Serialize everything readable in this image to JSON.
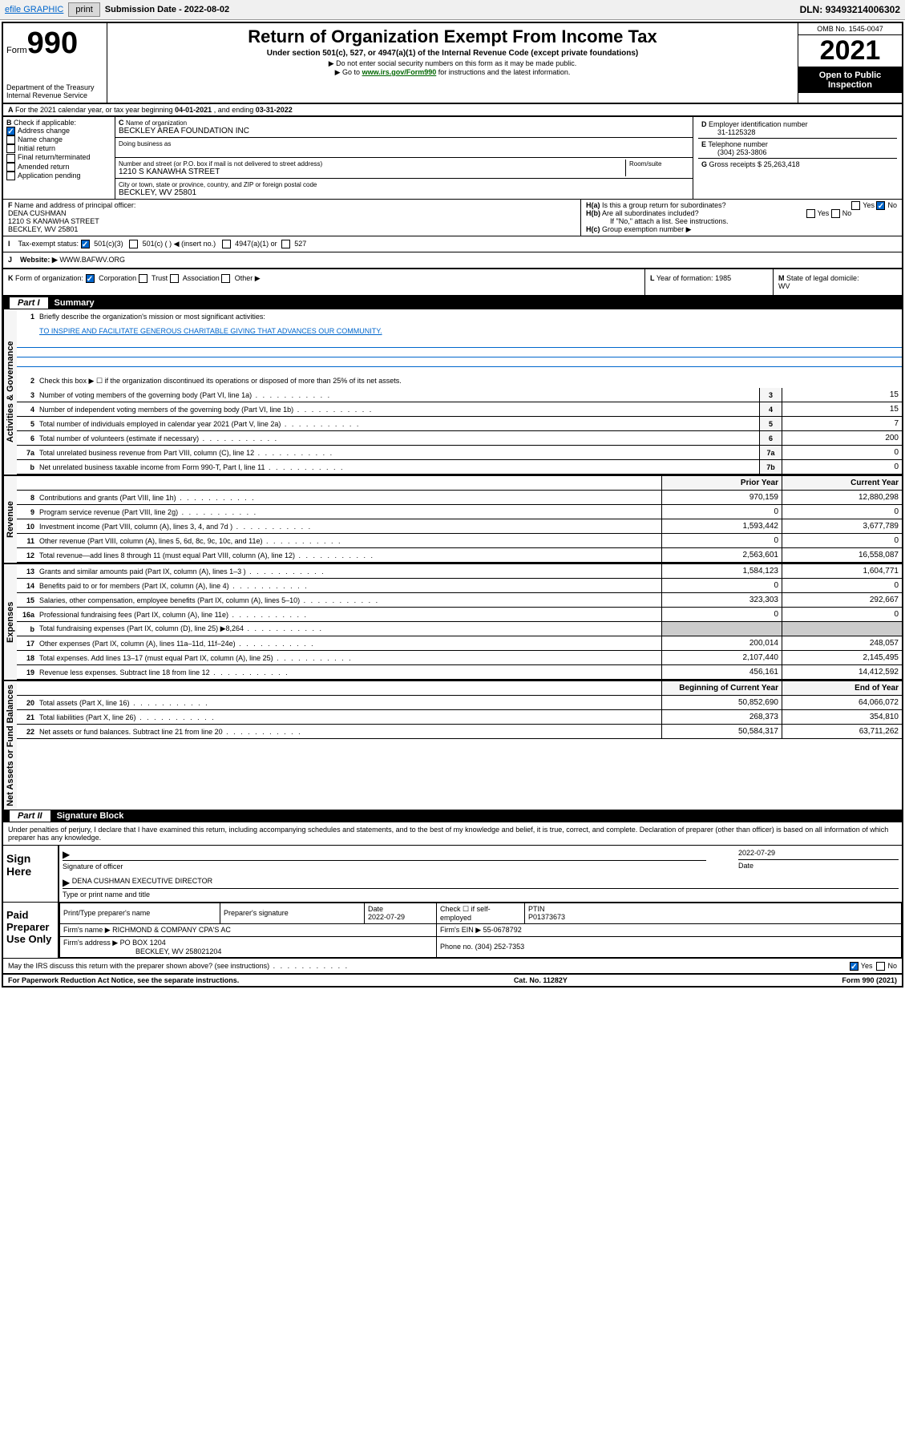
{
  "toolbar": {
    "efile": "efile GRAPHIC",
    "print": "print",
    "subdate_label": "Submission Date - ",
    "subdate": "2022-08-02",
    "dln_label": "DLN: ",
    "dln": "93493214006302"
  },
  "header": {
    "form_prefix": "Form",
    "form_num": "990",
    "dept": "Department of the Treasury",
    "irs": "Internal Revenue Service",
    "title": "Return of Organization Exempt From Income Tax",
    "subtitle": "Under section 501(c), 527, or 4947(a)(1) of the Internal Revenue Code (except private foundations)",
    "note1": "▶ Do not enter social security numbers on this form as it may be made public.",
    "note2_pre": "▶ Go to ",
    "note2_link": "www.irs.gov/Form990",
    "note2_post": " for instructions and the latest information.",
    "omb": "OMB No. 1545-0047",
    "year": "2021",
    "open": "Open to Public Inspection"
  },
  "secA": {
    "text_pre": "For the 2021 calendar year, or tax year beginning ",
    "begin": "04-01-2021",
    "mid": " , and ending ",
    "end": "03-31-2022"
  },
  "secB": {
    "label": "Check if applicable:",
    "addr_change": "Address change",
    "name_change": "Name change",
    "initial": "Initial return",
    "final": "Final return/terminated",
    "amended": "Amended return",
    "app_pending": "Application pending"
  },
  "secC": {
    "name_label": "Name of organization",
    "name": "BECKLEY AREA FOUNDATION INC",
    "dba_label": "Doing business as",
    "dba": "",
    "addr_label": "Number and street (or P.O. box if mail is not delivered to street address)",
    "room_label": "Room/suite",
    "addr": "1210 S KANAWHA STREET",
    "city_label": "City or town, state or province, country, and ZIP or foreign postal code",
    "city": "BECKLEY, WV  25801"
  },
  "secD": {
    "label": "Employer identification number",
    "val": "31-1125328"
  },
  "secE": {
    "label": "Telephone number",
    "val": "(304) 253-3806"
  },
  "secG": {
    "label": "Gross receipts $",
    "val": "25,263,418"
  },
  "secF": {
    "label": "Name and address of principal officer:",
    "name": "DENA CUSHMAN",
    "addr1": "1210 S KANAWHA STREET",
    "addr2": "BECKLEY, WV  25801"
  },
  "secH": {
    "ha": "Is this a group return for subordinates?",
    "hb": "Are all subordinates included?",
    "hb_note": "If \"No,\" attach a list. See instructions.",
    "hc": "Group exemption number ▶",
    "yes": "Yes",
    "no": "No"
  },
  "secI": {
    "label": "Tax-exempt status:",
    "opt1": "501(c)(3)",
    "opt2": "501(c) (  ) ◀ (insert no.)",
    "opt3": "4947(a)(1) or",
    "opt4": "527"
  },
  "secJ": {
    "label": "Website: ▶",
    "val": "WWW.BAFWV.ORG"
  },
  "secK": {
    "label": "Form of organization:",
    "corp": "Corporation",
    "trust": "Trust",
    "assoc": "Association",
    "other": "Other ▶"
  },
  "secL": {
    "label": "Year of formation:",
    "val": "1985"
  },
  "secM": {
    "label": "State of legal domicile:",
    "val": "WV"
  },
  "part1": {
    "title": "Summary",
    "q1": "Briefly describe the organization's mission or most significant activities:",
    "mission": "TO INSPIRE AND FACILITATE GENEROUS CHARITABLE GIVING THAT ADVANCES OUR COMMUNITY.",
    "q2": "Check this box ▶ ☐  if the organization discontinued its operations or disposed of more than 25% of its net assets.",
    "sidebars": {
      "ag": "Activities & Governance",
      "rev": "Revenue",
      "exp": "Expenses",
      "net": "Net Assets or Fund Balances"
    },
    "rows": [
      {
        "n": "3",
        "t": "Number of voting members of the governing body (Part VI, line 1a)",
        "box": "3",
        "v": "15"
      },
      {
        "n": "4",
        "t": "Number of independent voting members of the governing body (Part VI, line 1b)",
        "box": "4",
        "v": "15"
      },
      {
        "n": "5",
        "t": "Total number of individuals employed in calendar year 2021 (Part V, line 2a)",
        "box": "5",
        "v": "7"
      },
      {
        "n": "6",
        "t": "Total number of volunteers (estimate if necessary)",
        "box": "6",
        "v": "200"
      },
      {
        "n": "7a",
        "t": "Total unrelated business revenue from Part VIII, column (C), line 12",
        "box": "7a",
        "v": "0"
      },
      {
        "n": "b",
        "t": "Net unrelated business taxable income from Form 990-T, Part I, line 11",
        "box": "7b",
        "v": "0"
      }
    ],
    "colhdrs": {
      "prior": "Prior Year",
      "current": "Current Year",
      "boy": "Beginning of Current Year",
      "eoy": "End of Year"
    },
    "rev_rows": [
      {
        "n": "8",
        "t": "Contributions and grants (Part VIII, line 1h)",
        "p": "970,159",
        "c": "12,880,298"
      },
      {
        "n": "9",
        "t": "Program service revenue (Part VIII, line 2g)",
        "p": "0",
        "c": "0"
      },
      {
        "n": "10",
        "t": "Investment income (Part VIII, column (A), lines 3, 4, and 7d )",
        "p": "1,593,442",
        "c": "3,677,789"
      },
      {
        "n": "11",
        "t": "Other revenue (Part VIII, column (A), lines 5, 6d, 8c, 9c, 10c, and 11e)",
        "p": "0",
        "c": "0"
      },
      {
        "n": "12",
        "t": "Total revenue—add lines 8 through 11 (must equal Part VIII, column (A), line 12)",
        "p": "2,563,601",
        "c": "16,558,087"
      }
    ],
    "exp_rows": [
      {
        "n": "13",
        "t": "Grants and similar amounts paid (Part IX, column (A), lines 1–3 )",
        "p": "1,584,123",
        "c": "1,604,771"
      },
      {
        "n": "14",
        "t": "Benefits paid to or for members (Part IX, column (A), line 4)",
        "p": "0",
        "c": "0"
      },
      {
        "n": "15",
        "t": "Salaries, other compensation, employee benefits (Part IX, column (A), lines 5–10)",
        "p": "323,303",
        "c": "292,667"
      },
      {
        "n": "16a",
        "t": "Professional fundraising fees (Part IX, column (A), line 11e)",
        "p": "0",
        "c": "0"
      },
      {
        "n": "b",
        "t": "Total fundraising expenses (Part IX, column (D), line 25) ▶8,264",
        "p": "",
        "c": "",
        "gray": true
      },
      {
        "n": "17",
        "t": "Other expenses (Part IX, column (A), lines 11a–11d, 11f–24e)",
        "p": "200,014",
        "c": "248,057"
      },
      {
        "n": "18",
        "t": "Total expenses. Add lines 13–17 (must equal Part IX, column (A), line 25)",
        "p": "2,107,440",
        "c": "2,145,495"
      },
      {
        "n": "19",
        "t": "Revenue less expenses. Subtract line 18 from line 12",
        "p": "456,161",
        "c": "14,412,592"
      }
    ],
    "net_rows": [
      {
        "n": "20",
        "t": "Total assets (Part X, line 16)",
        "p": "50,852,690",
        "c": "64,066,072"
      },
      {
        "n": "21",
        "t": "Total liabilities (Part X, line 26)",
        "p": "268,373",
        "c": "354,810"
      },
      {
        "n": "22",
        "t": "Net assets or fund balances. Subtract line 21 from line 20",
        "p": "50,584,317",
        "c": "63,711,262"
      }
    ]
  },
  "part2": {
    "title": "Signature Block",
    "decl": "Under penalties of perjury, I declare that I have examined this return, including accompanying schedules and statements, and to the best of my knowledge and belief, it is true, correct, and complete. Declaration of preparer (other than officer) is based on all information of which preparer has any knowledge.",
    "sign_here": "Sign Here",
    "sig_officer": "Signature of officer",
    "date_label": "Date",
    "sig_date": "2022-07-29",
    "officer_name": "DENA CUSHMAN  EXECUTIVE DIRECTOR",
    "type_name": "Type or print name and title",
    "paid": "Paid Preparer Use Only",
    "prep_name_label": "Print/Type preparer's name",
    "prep_sig_label": "Preparer's signature",
    "prep_date_label": "Date",
    "prep_date": "2022-07-29",
    "self_emp": "Check ☐ if self-employed",
    "ptin_label": "PTIN",
    "ptin": "P01373673",
    "firm_name_label": "Firm's name    ▶",
    "firm_name": "RICHMOND & COMPANY CPA'S AC",
    "firm_ein_label": "Firm's EIN ▶",
    "firm_ein": "55-0678792",
    "firm_addr_label": "Firm's address ▶",
    "firm_addr1": "PO BOX 1204",
    "firm_addr2": "BECKLEY, WV 258021204",
    "phone_label": "Phone no.",
    "phone": "(304) 252-7353",
    "discuss": "May the IRS discuss this return with the preparer shown above? (see instructions)"
  },
  "footer": {
    "pra": "For Paperwork Reduction Act Notice, see the separate instructions.",
    "cat": "Cat. No. 11282Y",
    "form": "Form 990 (2021)"
  },
  "letters": {
    "A": "A",
    "B": "B",
    "C": "C",
    "D": "D",
    "E": "E",
    "F": "F",
    "G": "G",
    "H_a": "H(a)",
    "H_b": "H(b)",
    "H_c": "H(c)",
    "I": "I",
    "J": "J",
    "K": "K",
    "L": "L",
    "M": "M",
    "PartI": "Part I",
    "PartII": "Part II"
  }
}
